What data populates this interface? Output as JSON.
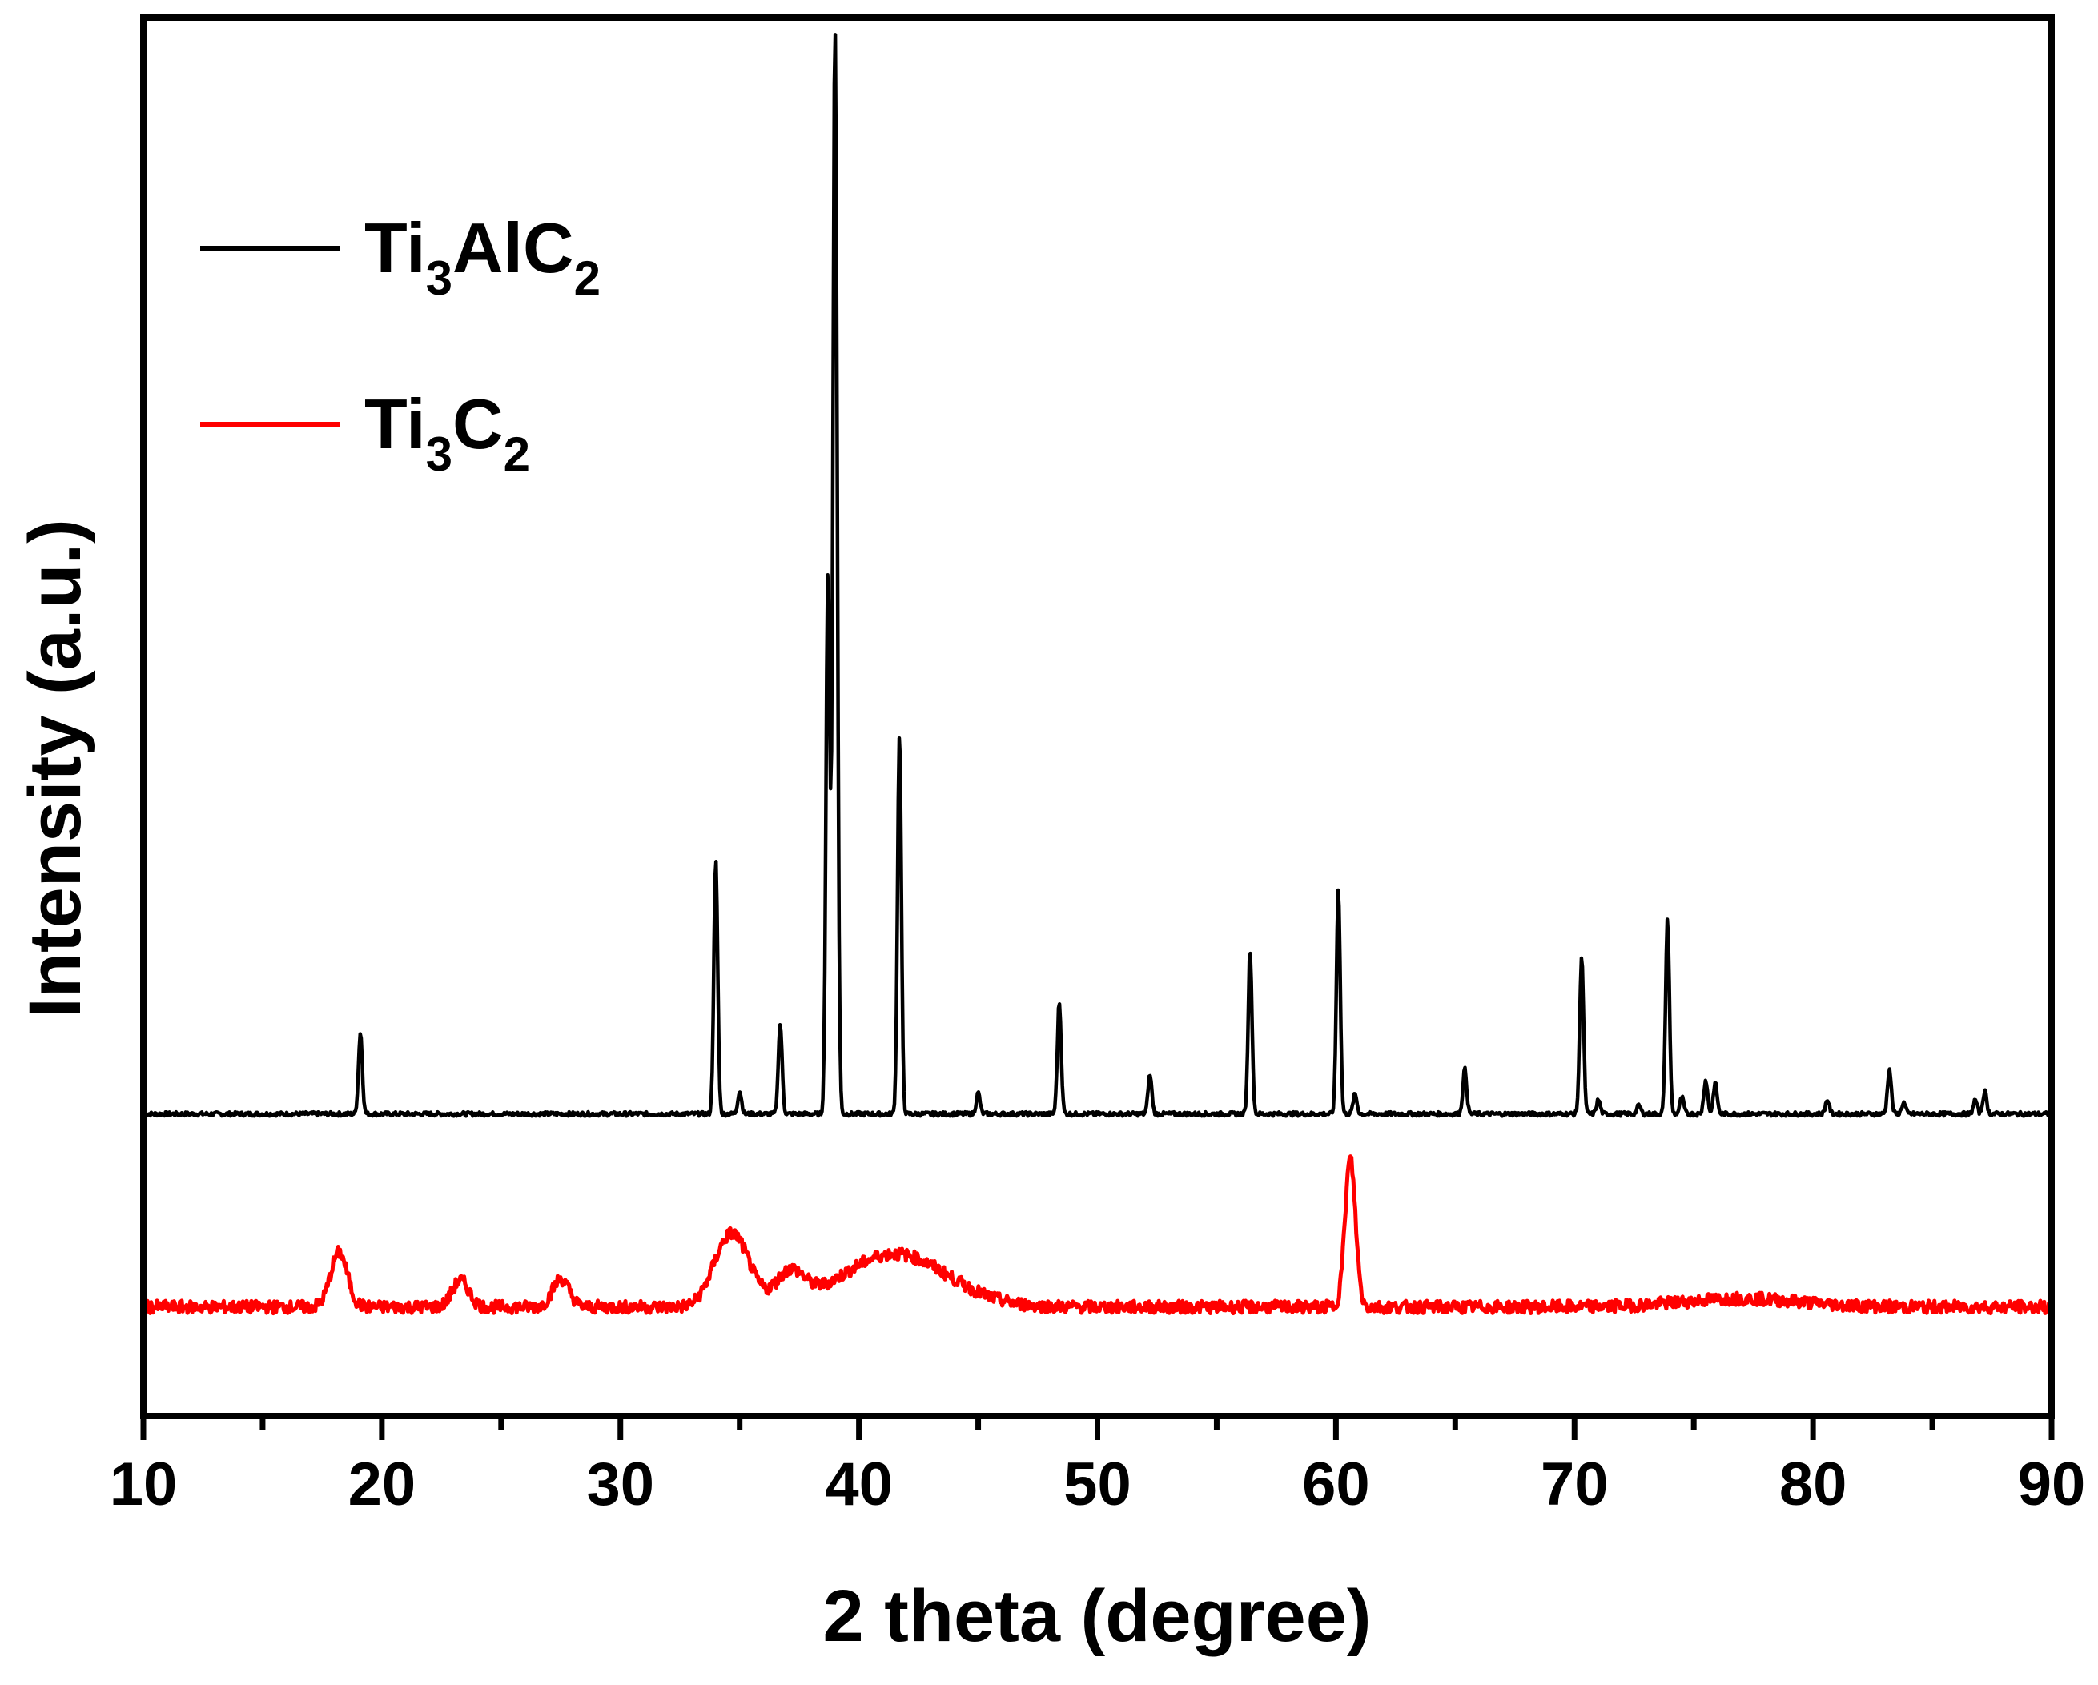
{
  "chart_data": {
    "type": "line",
    "title": "",
    "xlabel": "2 theta (degree)",
    "ylabel": "Intensity (a.u.)",
    "xlim": [
      10,
      90
    ],
    "ylim": [
      0,
      1
    ],
    "grid": false,
    "legend_position": "top-left",
    "x_ticks": [
      "10",
      "20",
      "30",
      "40",
      "50",
      "60",
      "70",
      "80",
      "90"
    ],
    "series": [
      {
        "name": "Ti3AlC2",
        "legend_main": "Ti",
        "legend_parts": [
          {
            "text": "Ti",
            "sub": false
          },
          {
            "text": "3",
            "sub": true
          },
          {
            "text": "AlC",
            "sub": false
          },
          {
            "text": "2",
            "sub": true
          }
        ],
        "color": "#000000",
        "baseline": 0.216,
        "peaks": [
          {
            "x": 19.1,
            "h": 0.058
          },
          {
            "x": 34.0,
            "h": 0.181
          },
          {
            "x": 35.0,
            "h": 0.016
          },
          {
            "x": 36.7,
            "h": 0.064
          },
          {
            "x": 38.7,
            "h": 0.385
          },
          {
            "x": 39.0,
            "h": 0.777
          },
          {
            "x": 41.7,
            "h": 0.272
          },
          {
            "x": 45.0,
            "h": 0.015
          },
          {
            "x": 48.4,
            "h": 0.08
          },
          {
            "x": 52.2,
            "h": 0.028
          },
          {
            "x": 56.4,
            "h": 0.117
          },
          {
            "x": 60.1,
            "h": 0.161
          },
          {
            "x": 60.8,
            "h": 0.014
          },
          {
            "x": 65.4,
            "h": 0.032
          },
          {
            "x": 70.3,
            "h": 0.113
          },
          {
            "x": 71.0,
            "h": 0.01
          },
          {
            "x": 72.7,
            "h": 0.006
          },
          {
            "x": 73.9,
            "h": 0.139
          },
          {
            "x": 74.5,
            "h": 0.012
          },
          {
            "x": 75.5,
            "h": 0.024
          },
          {
            "x": 75.9,
            "h": 0.022
          },
          {
            "x": 80.6,
            "h": 0.01
          },
          {
            "x": 83.2,
            "h": 0.032
          },
          {
            "x": 83.8,
            "h": 0.008
          },
          {
            "x": 86.8,
            "h": 0.01
          },
          {
            "x": 87.2,
            "h": 0.016
          }
        ]
      },
      {
        "name": "Ti3C2",
        "legend_parts": [
          {
            "text": "Ti",
            "sub": false
          },
          {
            "text": "3",
            "sub": true
          },
          {
            "text": "C",
            "sub": false
          },
          {
            "text": "2",
            "sub": true
          }
        ],
        "color": "#ff0000",
        "baseline": 0.078,
        "peaks": [
          {
            "x": 18.2,
            "h": 0.039
          },
          {
            "x": 23.3,
            "h": 0.019
          },
          {
            "x": 27.5,
            "h": 0.02
          },
          {
            "x": 34.3,
            "h": 0.03
          },
          {
            "x": 35.0,
            "h": 0.032
          },
          {
            "x": 37.1,
            "h": 0.022
          },
          {
            "x": 41.5,
            "h": 0.038
          },
          {
            "x": 60.6,
            "h": 0.106
          },
          {
            "x": 77.0,
            "h": 0.006
          }
        ]
      }
    ]
  }
}
